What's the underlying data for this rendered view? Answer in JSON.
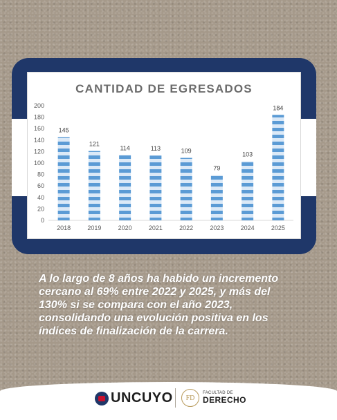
{
  "chart_data": {
    "type": "bar",
    "title": "CANTIDAD DE EGRESADOS",
    "categories": [
      "2018",
      "2019",
      "2020",
      "2021",
      "2022",
      "2023",
      "2024",
      "2025"
    ],
    "values": [
      145,
      121,
      114,
      113,
      109,
      79,
      103,
      184
    ],
    "data_labels": [
      "145",
      "121",
      "114",
      "113",
      "109",
      "79",
      "103",
      "184"
    ],
    "ylim": [
      0,
      200
    ],
    "yticks": [
      "0",
      "20",
      "40",
      "60",
      "80",
      "100",
      "120",
      "140",
      "160",
      "180",
      "200"
    ],
    "xlabel": "",
    "ylabel": "",
    "grid": false,
    "colors": {
      "bar_primary": "#5b9bd5",
      "bar_secondary": "#dbe9f7",
      "axis_text": "#595959"
    }
  },
  "caption": "A lo largo de 8 años ha habido un incremento cercano al 69% entre 2022 y 2025, y más del 130% si se compara con el año 2023, consolidando una evolución positiva en los índices de finalización de la carrera.",
  "footer": {
    "uncuyo": "UNCUYO",
    "facultad_small": "FACULTAD DE",
    "facultad_big": "DERECHO",
    "fd_monogram": "FD"
  },
  "colors": {
    "frame": "#1f3769",
    "background": "#a5998a"
  }
}
